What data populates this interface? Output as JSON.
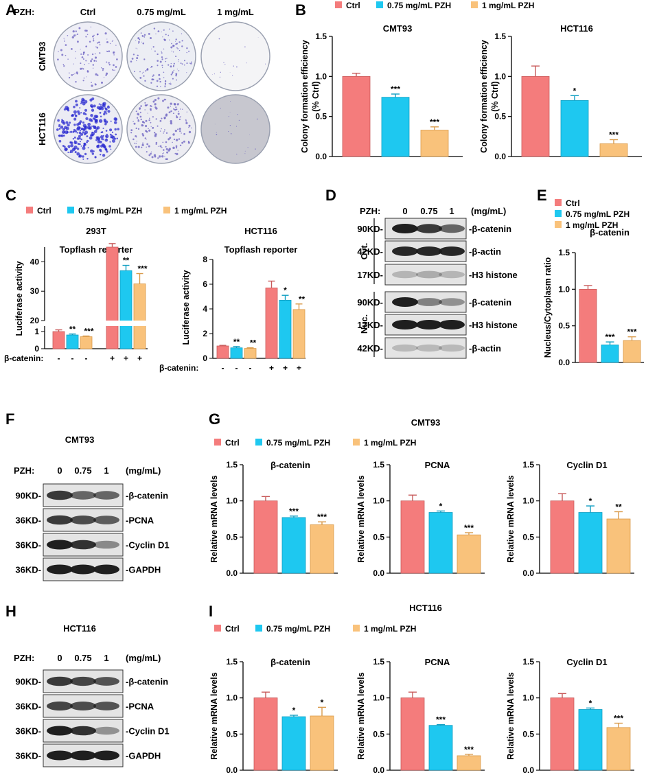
{
  "colors": {
    "ctrl": "#F47C7C",
    "low": "#1EC8F0",
    "high": "#F9C27B",
    "blot_bg": "#e4e4e4",
    "band": "#1b1b1b"
  },
  "legend": {
    "ctrl": "Ctrl",
    "low": "0.75 mg/mL PZH",
    "high": "1 mg/mL PZH"
  },
  "panelA": {
    "letter": "A",
    "pzh_label": "PZH:",
    "conditions": [
      "Ctrl",
      "0.75 mg/mL",
      "1 mg/mL"
    ],
    "rows": [
      "CMT93",
      "HCT116"
    ]
  },
  "panelD": {
    "letter": "D",
    "pzh_label": "PZH:",
    "conc": [
      "0",
      "0.75",
      "1"
    ],
    "unit": "(mg/mL)",
    "cyt_label": "Cyt.",
    "nuc_label": "Nuc.",
    "blots": [
      {
        "kd": "90KD-",
        "protein": "-β-catenin",
        "intensity": [
          1.0,
          0.85,
          0.6
        ]
      },
      {
        "kd": "42KD-",
        "protein": "-β-actin",
        "intensity": [
          0.95,
          0.95,
          0.95
        ]
      },
      {
        "kd": "17KD-",
        "protein": "-H3 histone",
        "intensity": [
          0.15,
          0.2,
          0.15
        ]
      },
      {
        "kd": "90KD-",
        "protein": "-β-catenin",
        "intensity": [
          1.0,
          0.45,
          0.35
        ]
      },
      {
        "kd": "17KD-",
        "protein": "-H3 histone",
        "intensity": [
          1.0,
          1.0,
          1.0
        ]
      },
      {
        "kd": "42KD-",
        "protein": "-β-actin",
        "intensity": [
          0.12,
          0.12,
          0.12
        ]
      }
    ]
  },
  "panelF": {
    "letter": "F",
    "title": "CMT93",
    "pzh_label": "PZH:",
    "conc": [
      "0",
      "0.75",
      "1"
    ],
    "unit": "(mg/mL)",
    "blots": [
      {
        "kd": "90KD-",
        "protein": "-β-catenin",
        "intensity": [
          0.85,
          0.6,
          0.6
        ]
      },
      {
        "kd": "36KD-",
        "protein": "-PCNA",
        "intensity": [
          0.85,
          0.75,
          0.65
        ]
      },
      {
        "kd": "36KD-",
        "protein": "-Cyclin D1",
        "intensity": [
          1.0,
          0.9,
          0.4
        ]
      },
      {
        "kd": "36KD-",
        "protein": "-GAPDH",
        "intensity": [
          1.0,
          1.0,
          1.0
        ]
      }
    ]
  },
  "panelH": {
    "letter": "H",
    "title": "HCT116",
    "pzh_label": "PZH:",
    "conc": [
      "0",
      "0.75",
      "1"
    ],
    "unit": "(mg/mL)",
    "blots": [
      {
        "kd": "90KD-",
        "protein": "-β-catenin",
        "intensity": [
          0.85,
          0.8,
          0.7
        ]
      },
      {
        "kd": "36KD-",
        "protein": "-PCNA",
        "intensity": [
          0.8,
          0.75,
          0.7
        ]
      },
      {
        "kd": "36KD-",
        "protein": "-Cyclin D1",
        "intensity": [
          1.0,
          0.9,
          0.35
        ]
      },
      {
        "kd": "36KD-",
        "protein": "-GAPDH",
        "intensity": [
          1.0,
          1.0,
          1.0
        ]
      }
    ]
  },
  "chart_data": [
    {
      "id": "B1",
      "letter": "B",
      "type": "bar",
      "title": "CMT93",
      "ylabel": [
        "Colony formation efficiency",
        "(% Ctrl)"
      ],
      "ylim": [
        0,
        1.5
      ],
      "ticks": [
        "0.0",
        "0.5",
        "1.0",
        "1.5"
      ],
      "categories": [
        "Ctrl",
        "0.75 mg/mL PZH",
        "1 mg/mL PZH"
      ],
      "values": [
        1.0,
        0.74,
        0.33
      ],
      "errors": [
        0.04,
        0.04,
        0.04
      ],
      "sig": [
        "",
        "***",
        "***"
      ]
    },
    {
      "id": "B2",
      "type": "bar",
      "title": "HCT116",
      "ylabel": [
        "Colony formation efficiency",
        "(% Ctrl)"
      ],
      "ylim": [
        0,
        1.5
      ],
      "ticks": [
        "0.0",
        "0.5",
        "1.0",
        "1.5"
      ],
      "categories": [
        "Ctrl",
        "0.75 mg/mL PZH",
        "1 mg/mL PZH"
      ],
      "values": [
        1.0,
        0.7,
        0.16
      ],
      "errors": [
        0.13,
        0.06,
        0.05
      ],
      "sig": [
        "",
        "*",
        "***"
      ]
    },
    {
      "id": "C1",
      "letter": "C",
      "type": "bar",
      "title": "293T",
      "subtitle": "Topflash reporter",
      "ylabel": [
        "Luciferase activity"
      ],
      "broken_axis": true,
      "lower_ylim": [
        0,
        1
      ],
      "lower_ticks": [
        "0",
        "1"
      ],
      "upper_ylim": [
        20,
        45
      ],
      "upper_ticks": [
        "20",
        "30",
        "40"
      ],
      "xlabel": "β-catenin:",
      "group_signs": [
        "-",
        "+"
      ],
      "groups": [
        {
          "values": [
            1.0,
            0.8,
            0.7
          ],
          "errors": [
            0.1,
            0.06,
            0.04
          ],
          "sig": [
            "",
            "**",
            "***"
          ]
        },
        {
          "values": [
            45,
            37,
            32.5
          ],
          "errors": [
            1.2,
            1.8,
            3.5
          ],
          "sig": [
            "",
            "**",
            "***"
          ]
        }
      ]
    },
    {
      "id": "C2",
      "type": "bar",
      "title": "HCT116",
      "subtitle": "Topflash reporter",
      "ylabel": [
        "Luciferase activity"
      ],
      "ylim": [
        0,
        8
      ],
      "ticks": [
        "0",
        "2",
        "4",
        "6",
        "8"
      ],
      "xlabel": "β-catenin:",
      "group_signs": [
        "-",
        "+"
      ],
      "groups": [
        {
          "values": [
            1.0,
            0.85,
            0.8
          ],
          "errors": [
            0.05,
            0.1,
            0.05
          ],
          "sig": [
            "",
            "**",
            "**"
          ]
        },
        {
          "values": [
            5.7,
            4.7,
            3.95
          ],
          "errors": [
            0.55,
            0.4,
            0.45
          ],
          "sig": [
            "",
            "*",
            "**"
          ]
        }
      ]
    },
    {
      "id": "E",
      "letter": "E",
      "type": "bar",
      "title": "β-catenin",
      "ylabel": [
        "Nucleus/Cytoplasm ratio"
      ],
      "ylim": [
        0,
        1.5
      ],
      "ticks": [
        "0.0",
        "0.5",
        "1.0",
        "1.5"
      ],
      "categories": [
        "Ctrl",
        "0.75 mg/mL PZH",
        "1 mg/mL PZH"
      ],
      "values": [
        1.0,
        0.24,
        0.3
      ],
      "errors": [
        0.05,
        0.04,
        0.05
      ],
      "sig": [
        "",
        "***",
        "***"
      ]
    },
    {
      "id": "G1",
      "letter": "G",
      "type": "bar",
      "title": "β-catenin",
      "ylabel": [
        "Relative mRNA levels"
      ],
      "ylim": [
        0,
        1.5
      ],
      "ticks": [
        "0.0",
        "0.5",
        "1.0",
        "1.5"
      ],
      "categories": [
        "Ctrl",
        "0.75 mg/mL PZH",
        "1 mg/mL PZH"
      ],
      "values": [
        1.0,
        0.77,
        0.67
      ],
      "errors": [
        0.06,
        0.02,
        0.04
      ],
      "sig": [
        "",
        "***",
        "***"
      ]
    },
    {
      "id": "G2",
      "type": "bar",
      "title": "PCNA",
      "ylabel": [
        "Relative mRNA levels"
      ],
      "ylim": [
        0,
        1.5
      ],
      "ticks": [
        "0.0",
        "0.5",
        "1.0",
        "1.5"
      ],
      "categories": [
        "Ctrl",
        "0.75 mg/mL PZH",
        "1 mg/mL PZH"
      ],
      "values": [
        1.0,
        0.84,
        0.53
      ],
      "errors": [
        0.08,
        0.02,
        0.03
      ],
      "sig": [
        "",
        "*",
        "***"
      ]
    },
    {
      "id": "G3",
      "type": "bar",
      "title": "Cyclin D1",
      "ylabel": [
        "Relative mRNA levels"
      ],
      "ylim": [
        0,
        1.5
      ],
      "ticks": [
        "0.0",
        "0.5",
        "1.0",
        "1.5"
      ],
      "categories": [
        "Ctrl",
        "0.75 mg/mL PZH",
        "1 mg/mL PZH"
      ],
      "values": [
        1.0,
        0.84,
        0.75
      ],
      "errors": [
        0.1,
        0.09,
        0.1
      ],
      "sig": [
        "",
        "*",
        "**"
      ]
    },
    {
      "id": "I1",
      "letter": "I",
      "type": "bar",
      "title": "β-catenin",
      "ylabel": [
        "Relative mRNA levels"
      ],
      "ylim": [
        0,
        1.5
      ],
      "ticks": [
        "0.0",
        "0.5",
        "1.0",
        "1.5"
      ],
      "categories": [
        "Ctrl",
        "0.75 mg/mL PZH",
        "1 mg/mL PZH"
      ],
      "values": [
        1.0,
        0.74,
        0.75
      ],
      "errors": [
        0.08,
        0.02,
        0.12
      ],
      "sig": [
        "",
        "*",
        "*"
      ]
    },
    {
      "id": "I2",
      "type": "bar",
      "title": "PCNA",
      "ylabel": [
        "Relative mRNA levels"
      ],
      "ylim": [
        0,
        1.5
      ],
      "ticks": [
        "0.0",
        "0.5",
        "1.0",
        "1.5"
      ],
      "categories": [
        "Ctrl",
        "0.75 mg/mL PZH",
        "1 mg/mL PZH"
      ],
      "values": [
        1.0,
        0.62,
        0.2
      ],
      "errors": [
        0.08,
        0.01,
        0.02
      ],
      "sig": [
        "",
        "***",
        "***"
      ]
    },
    {
      "id": "I3",
      "type": "bar",
      "title": "Cyclin D1",
      "ylabel": [
        "Relative mRNA levels"
      ],
      "ylim": [
        0,
        1.5
      ],
      "ticks": [
        "0.0",
        "0.5",
        "1.0",
        "1.5"
      ],
      "categories": [
        "Ctrl",
        "0.75 mg/mL PZH",
        "1 mg/mL PZH"
      ],
      "values": [
        1.0,
        0.84,
        0.59
      ],
      "errors": [
        0.06,
        0.02,
        0.06
      ],
      "sig": [
        "",
        "*",
        "***"
      ]
    }
  ],
  "section_titles": {
    "G": "CMT93",
    "I": "HCT116"
  }
}
